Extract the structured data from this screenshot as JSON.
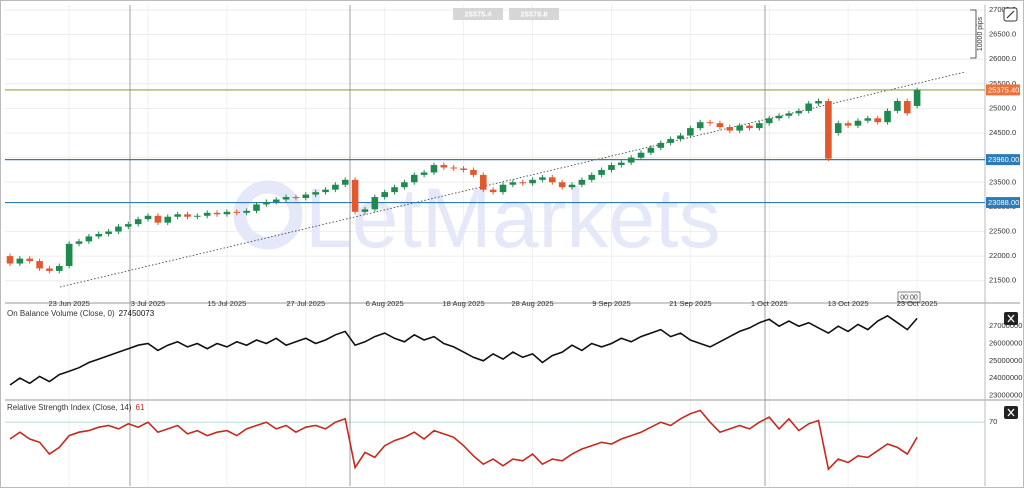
{
  "chart_data": [
    {
      "type": "candlestick",
      "watermark": "LetMarkets",
      "up_color": "#1f8a4f",
      "down_color": "#e2582f",
      "categories": [
        null,
        null,
        null,
        null,
        null,
        null,
        "23 Jun 2025",
        null,
        null,
        null,
        null,
        null,
        null,
        null,
        "3 Jul 2025",
        null,
        null,
        null,
        null,
        null,
        null,
        null,
        "15 Jul 2025",
        null,
        null,
        null,
        null,
        null,
        null,
        null,
        "27 Jul 2025",
        null,
        null,
        null,
        null,
        null,
        null,
        null,
        "6 Aug 2025",
        null,
        null,
        null,
        null,
        null,
        null,
        null,
        "18 Aug 2025",
        null,
        null,
        null,
        null,
        null,
        null,
        "28 Aug 2025",
        null,
        null,
        null,
        null,
        null,
        null,
        null,
        "9 Sep 2025",
        null,
        null,
        null,
        null,
        null,
        null,
        null,
        "21 Sep 2025",
        null,
        null,
        null,
        null,
        null,
        null,
        null,
        "1 Oct 2025",
        null,
        null,
        null,
        null,
        null,
        null,
        null,
        "13 Oct 2025",
        null,
        null,
        null,
        null,
        null,
        null,
        "23 Oct 2025"
      ],
      "open": [
        22000,
        21850,
        21950,
        21900,
        21750,
        21700,
        21800,
        22250,
        22300,
        22400,
        22450,
        22500,
        22600,
        22650,
        22750,
        22820,
        22680,
        22800,
        22850,
        22800,
        22820,
        22880,
        22850,
        22900,
        22880,
        22920,
        23050,
        23100,
        23150,
        23200,
        23180,
        23250,
        23300,
        23350,
        23450,
        23550,
        22900,
        22950,
        23200,
        23300,
        23400,
        23500,
        23650,
        23700,
        23850,
        23800,
        23780,
        23750,
        23650,
        23350,
        23300,
        23450,
        23500,
        23480,
        23550,
        23600,
        23500,
        23400,
        23450,
        23550,
        23650,
        23750,
        23850,
        23900,
        24000,
        24100,
        24200,
        24300,
        24380,
        24450,
        24600,
        24720,
        24700,
        24620,
        24550,
        24650,
        24600,
        24700,
        24800,
        24850,
        24900,
        24950,
        25100,
        25150,
        24500,
        24700,
        24650,
        24750,
        24800,
        24720,
        24950,
        25150,
        25050
      ],
      "high": [
        22050,
        22000,
        22000,
        21950,
        21800,
        21850,
        22300,
        22350,
        22450,
        22500,
        22550,
        22650,
        22700,
        22800,
        22870,
        22870,
        22850,
        22900,
        22900,
        22870,
        22930,
        22930,
        22950,
        22950,
        22970,
        23100,
        23150,
        23200,
        23250,
        23250,
        23300,
        23350,
        23400,
        23500,
        23600,
        23600,
        23000,
        23250,
        23350,
        23450,
        23550,
        23700,
        23750,
        23900,
        23900,
        23850,
        23830,
        23800,
        23700,
        23400,
        23500,
        23550,
        23550,
        23600,
        23650,
        23650,
        23550,
        23500,
        23600,
        23700,
        23800,
        23900,
        23950,
        24050,
        24150,
        24250,
        24350,
        24430,
        24500,
        24650,
        24770,
        24770,
        24750,
        24670,
        24700,
        24700,
        24750,
        24850,
        24900,
        24950,
        25000,
        25150,
        25200,
        25200,
        24750,
        24750,
        24800,
        24850,
        24850,
        25000,
        25200,
        25200,
        25420
      ],
      "low": [
        21800,
        21800,
        21850,
        21700,
        21650,
        21650,
        21750,
        22200,
        22250,
        22350,
        22400,
        22450,
        22550,
        22600,
        22700,
        22630,
        22630,
        22750,
        22750,
        22750,
        22770,
        22800,
        22800,
        22830,
        22830,
        22870,
        23000,
        23050,
        23100,
        23130,
        23130,
        23200,
        23250,
        23300,
        23400,
        22850,
        22850,
        22900,
        23150,
        23250,
        23350,
        23450,
        23600,
        23650,
        23750,
        23730,
        23700,
        23600,
        23300,
        23250,
        23250,
        23400,
        23430,
        23430,
        23500,
        23450,
        23350,
        23350,
        23400,
        23500,
        23600,
        23700,
        23800,
        23850,
        23950,
        24050,
        24150,
        24250,
        24330,
        24400,
        24550,
        24650,
        24570,
        24500,
        24500,
        24550,
        24550,
        24650,
        24750,
        24800,
        24850,
        24900,
        25050,
        23930,
        24450,
        24600,
        24600,
        24700,
        24670,
        24670,
        24900,
        24850,
        25000
      ],
      "close": [
        21850,
        21950,
        21900,
        21750,
        21700,
        21800,
        22250,
        22300,
        22400,
        22450,
        22500,
        22600,
        22650,
        22750,
        22820,
        22680,
        22800,
        22850,
        22800,
        22820,
        22880,
        22850,
        22900,
        22880,
        22920,
        23050,
        23100,
        23150,
        23200,
        23180,
        23250,
        23300,
        23350,
        23450,
        23550,
        22900,
        22950,
        23200,
        23300,
        23400,
        23500,
        23650,
        23700,
        23850,
        23800,
        23780,
        23750,
        23650,
        23350,
        23300,
        23450,
        23500,
        23480,
        23550,
        23600,
        23500,
        23400,
        23450,
        23550,
        23650,
        23750,
        23850,
        23900,
        24000,
        24100,
        24200,
        24300,
        24380,
        24450,
        24600,
        24720,
        24700,
        24620,
        24550,
        24650,
        24600,
        24700,
        24800,
        24850,
        24900,
        24950,
        25100,
        25150,
        23980,
        24700,
        24650,
        24750,
        24800,
        24720,
        24950,
        25150,
        24900,
        25375.4
      ],
      "ylim": [
        21150,
        27100
      ],
      "yticks": [
        {
          "value": 21500,
          "label": "21500.0"
        },
        {
          "value": 22000,
          "label": "22000.0"
        },
        {
          "value": 22500,
          "label": "22500.0"
        },
        {
          "value": 23000,
          "label": "23000.0"
        },
        {
          "value": 23500,
          "label": "23500.0"
        },
        {
          "value": 24000,
          "label": "24000.0"
        },
        {
          "value": 24500,
          "label": "24500.0"
        },
        {
          "value": 25000,
          "label": "25000.0"
        },
        {
          "value": 25500,
          "label": "25500.0"
        },
        {
          "value": 26000,
          "label": "26000.0"
        },
        {
          "value": 26500,
          "label": "26500.0"
        },
        {
          "value": 27000,
          "label": "27000.0"
        }
      ],
      "grid": true,
      "levels": [
        {
          "value": 25375.4,
          "label": "25375.40",
          "line_color": "#9c9c45",
          "label_color": "#e8733c"
        },
        {
          "value": 23960,
          "label": "23960.00",
          "line_color": "#2b7bb9",
          "label_color": "#2b7bb9"
        },
        {
          "value": 23088,
          "label": "23088.00",
          "line_color": "#2b7bb9",
          "label_color": "#2b7bb9"
        }
      ],
      "badges": [
        "25375.4",
        "25378.8"
      ],
      "range_note": "10000 pips",
      "time_badge": "00:00"
    },
    {
      "type": "line",
      "title": "On Balance Volume (Close, 0)",
      "series": [
        {
          "name": "OBV",
          "color": "#111111",
          "values": [
            23600000,
            24000000,
            23700000,
            24100000,
            23800000,
            24200000,
            24400000,
            24600000,
            24900000,
            25100000,
            25300000,
            25500000,
            25700000,
            25900000,
            26000000,
            25600000,
            25900000,
            26100000,
            25800000,
            26000000,
            25700000,
            26000000,
            25800000,
            26100000,
            25900000,
            26200000,
            26000000,
            26300000,
            25900000,
            26100000,
            26300000,
            26000000,
            26200000,
            26500000,
            26700000,
            25900000,
            26100000,
            26400000,
            26600000,
            26300000,
            26100000,
            26500000,
            26200000,
            26400000,
            26000000,
            25800000,
            25500000,
            25200000,
            25000000,
            25400000,
            25100000,
            25500000,
            25200000,
            25400000,
            24900000,
            25300000,
            25500000,
            25900000,
            25600000,
            26000000,
            25800000,
            26000000,
            26300000,
            26100000,
            26400000,
            26600000,
            26800000,
            26400000,
            26600000,
            26200000,
            26000000,
            25800000,
            26100000,
            26400000,
            26700000,
            26900000,
            27200000,
            27400000,
            27000000,
            27300000,
            27000000,
            27200000,
            26900000,
            26600000,
            27000000,
            26700000,
            27100000,
            26800000,
            27300000,
            27600000,
            27200000,
            26800000,
            27450073
          ]
        }
      ],
      "ylim": [
        22850000,
        28050000
      ],
      "yticks": [
        23000000,
        24000000,
        25000000,
        26000000,
        27000000
      ]
    },
    {
      "type": "line",
      "title": "Relative Strength Index (Close, 14)",
      "series": [
        {
          "name": "RSI",
          "color": "#c62a1f",
          "values": [
            60,
            64,
            60,
            58,
            51,
            55,
            62,
            64,
            65,
            67,
            68,
            66,
            69,
            67,
            70,
            64,
            66,
            68,
            63,
            65,
            62,
            64,
            65,
            62,
            66,
            68,
            70,
            66,
            68,
            64,
            67,
            68,
            66,
            70,
            72,
            43,
            52,
            49,
            56,
            59,
            61,
            64,
            60,
            65,
            63,
            61,
            56,
            50,
            45,
            48,
            44,
            48,
            47,
            51,
            45,
            48,
            47,
            51,
            54,
            56,
            58,
            57,
            60,
            62,
            64,
            67,
            70,
            68,
            72,
            75,
            77,
            70,
            64,
            66,
            68,
            66,
            70,
            73,
            66,
            72,
            65,
            69,
            71,
            42,
            48,
            46,
            50,
            49,
            53,
            57,
            55,
            51,
            61
          ]
        }
      ],
      "ylim": [
        32,
        82
      ],
      "yticks": [
        70
      ],
      "grid": true
    }
  ]
}
